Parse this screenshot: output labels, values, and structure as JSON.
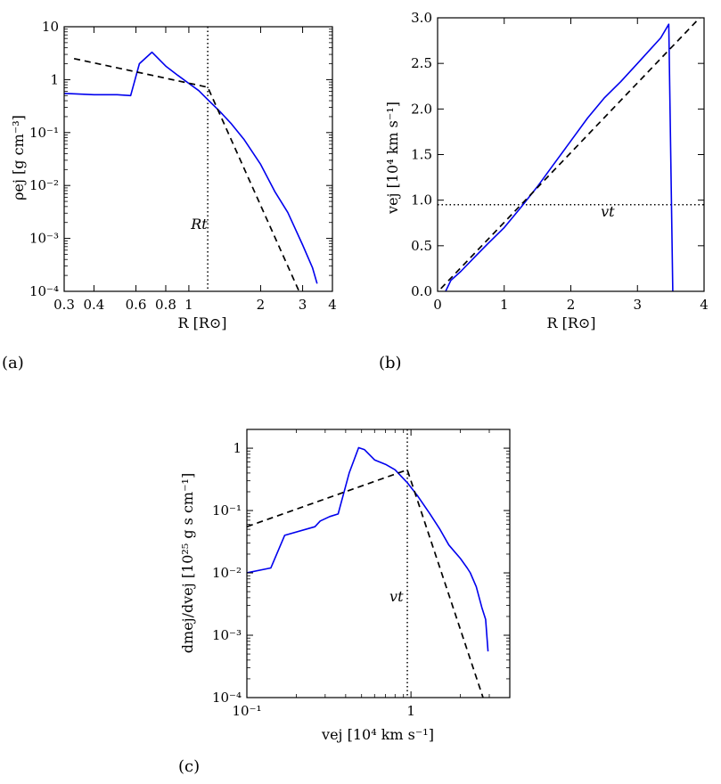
{
  "colors": {
    "model": "#0000ee",
    "fit": "#000000",
    "axes": "#000000"
  },
  "chart_data": [
    {
      "id": "a",
      "type": "line",
      "panel_label": "(a)",
      "xlabel": "R [R⊙]",
      "ylabel": "ρej [g cm⁻³]",
      "xscale": "log",
      "yscale": "log",
      "xlim": [
        0.3,
        4
      ],
      "ylim": [
        0.0001,
        10
      ],
      "xticks": [
        0.3,
        0.4,
        0.6,
        0.8,
        1,
        2,
        3,
        4
      ],
      "xtick_labels": [
        "0.3",
        "0.4",
        "0.6",
        "0.8",
        "1",
        "2",
        "3",
        "4"
      ],
      "yticks": [
        0.0001,
        0.001,
        0.01,
        0.1,
        1,
        10
      ],
      "ytick_labels": [
        "10⁻⁴",
        "10⁻³",
        "10⁻²",
        "10⁻¹",
        "1",
        "10"
      ],
      "annotations": [
        {
          "text": "Rt",
          "x": 1.02,
          "y": 0.0015
        }
      ],
      "vline": 1.2,
      "series": [
        {
          "style": "solid",
          "color": "model",
          "x": [
            0.3,
            0.4,
            0.5,
            0.57,
            0.62,
            0.7,
            0.8,
            0.9,
            1.0,
            1.1,
            1.2,
            1.35,
            1.5,
            1.7,
            2.0,
            2.3,
            2.6,
            3.0,
            3.3,
            3.45
          ],
          "y": [
            0.55,
            0.52,
            0.52,
            0.5,
            2.0,
            3.3,
            1.8,
            1.2,
            0.85,
            0.62,
            0.42,
            0.25,
            0.15,
            0.075,
            0.025,
            0.0075,
            0.0031,
            0.00075,
            0.00028,
            0.00014
          ]
        },
        {
          "style": "dashed",
          "color": "fit",
          "x": [
            0.33,
            1.2,
            2.9
          ],
          "y": [
            2.5,
            0.72,
            0.0001
          ]
        }
      ]
    },
    {
      "id": "b",
      "type": "line",
      "panel_label": "(b)",
      "xlabel": "R [R⊙]",
      "ylabel": "vej [10⁴ km s⁻¹]",
      "xscale": "linear",
      "yscale": "linear",
      "xlim": [
        0,
        4
      ],
      "ylim": [
        0,
        3.0
      ],
      "xticks": [
        0,
        1,
        2,
        3,
        4
      ],
      "xtick_labels": [
        "0",
        "1",
        "2",
        "3",
        "4"
      ],
      "yticks": [
        0,
        0.5,
        1.0,
        1.5,
        2.0,
        2.5,
        3.0
      ],
      "ytick_labels": [
        "0.0",
        "0.5",
        "1.0",
        "1.5",
        "2.0",
        "2.5",
        "3.0"
      ],
      "annotations": [
        {
          "text": "vt",
          "x": 2.45,
          "y": 0.82
        }
      ],
      "hline": 0.95,
      "series": [
        {
          "style": "solid",
          "color": "model",
          "x": [
            0.12,
            0.2,
            0.35,
            0.55,
            0.75,
            1.0,
            1.25,
            1.5,
            1.75,
            2.0,
            2.25,
            2.5,
            2.75,
            3.0,
            3.2,
            3.35,
            3.47,
            3.53
          ],
          "y": [
            0.0,
            0.12,
            0.22,
            0.37,
            0.52,
            0.7,
            0.92,
            1.15,
            1.4,
            1.65,
            1.9,
            2.12,
            2.3,
            2.5,
            2.66,
            2.78,
            2.93,
            0.0
          ]
        },
        {
          "style": "dashed",
          "color": "fit",
          "x": [
            0.05,
            4.0
          ],
          "y": [
            0.03,
            3.05
          ]
        }
      ]
    },
    {
      "id": "c",
      "type": "line",
      "panel_label": "(c)",
      "xlabel": "vej [10⁴ km s⁻¹]",
      "ylabel": "dmej/dvej [10²⁵ g s cm⁻¹]",
      "xscale": "log",
      "yscale": "log",
      "xlim": [
        0.1,
        4
      ],
      "ylim": [
        0.0001,
        2
      ],
      "xticks": [
        0.1,
        1
      ],
      "xtick_labels": [
        "10⁻¹",
        "1"
      ],
      "yticks": [
        0.0001,
        0.001,
        0.01,
        0.1,
        1
      ],
      "ytick_labels": [
        "10⁻⁴",
        "10⁻³",
        "10⁻²",
        "10⁻¹",
        "1"
      ],
      "annotations": [
        {
          "text": "vt",
          "x": 0.74,
          "y": 0.0035
        }
      ],
      "vline": 0.95,
      "series": [
        {
          "style": "solid",
          "color": "model",
          "x": [
            0.1,
            0.14,
            0.17,
            0.26,
            0.28,
            0.32,
            0.36,
            0.42,
            0.48,
            0.52,
            0.6,
            0.7,
            0.8,
            0.95,
            1.1,
            1.3,
            1.5,
            1.7,
            2.0,
            2.2,
            2.3,
            2.5,
            2.7,
            2.85,
            2.95
          ],
          "y": [
            0.01,
            0.012,
            0.04,
            0.055,
            0.068,
            0.08,
            0.088,
            0.4,
            1.02,
            0.95,
            0.65,
            0.55,
            0.45,
            0.28,
            0.17,
            0.09,
            0.05,
            0.028,
            0.017,
            0.012,
            0.01,
            0.006,
            0.0028,
            0.0018,
            0.00055
          ]
        },
        {
          "style": "dashed",
          "color": "fit",
          "x": [
            0.1,
            0.95,
            2.75
          ],
          "y": [
            0.055,
            0.45,
            0.0001
          ]
        }
      ]
    }
  ]
}
